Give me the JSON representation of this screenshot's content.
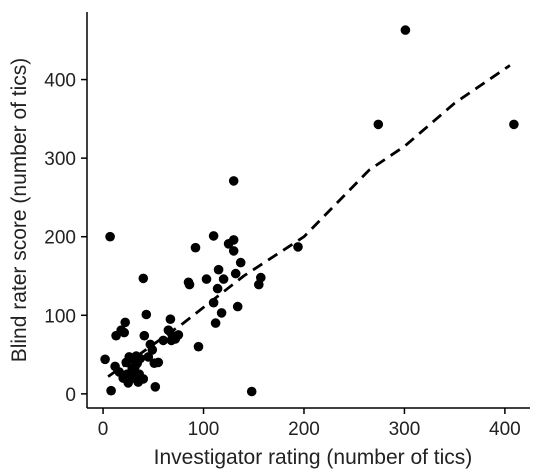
{
  "chart_data": {
    "type": "scatter",
    "xlabel": "Investigator rating (number of tics)",
    "ylabel": "Blind rater score (number of tics)",
    "xlim": [
      -16,
      425
    ],
    "ylim": [
      -18,
      486
    ],
    "xticks": [
      0,
      100,
      200,
      300,
      400
    ],
    "yticks": [
      0,
      100,
      200,
      300,
      400
    ],
    "grid": false,
    "point_color": "#000000",
    "trend_line": {
      "style": "dashed",
      "color": "#000000",
      "points": [
        [
          5,
          22
        ],
        [
          80,
          90
        ],
        [
          140,
          150
        ],
        [
          200,
          200
        ],
        [
          265,
          285
        ],
        [
          300,
          315
        ],
        [
          350,
          370
        ],
        [
          405,
          418
        ]
      ]
    },
    "points": [
      [
        2,
        44
      ],
      [
        8,
        4
      ],
      [
        7,
        200
      ],
      [
        12,
        35
      ],
      [
        13,
        74
      ],
      [
        16,
        28
      ],
      [
        18,
        81
      ],
      [
        20,
        20
      ],
      [
        21,
        78
      ],
      [
        22,
        91
      ],
      [
        23,
        40
      ],
      [
        24,
        25
      ],
      [
        25,
        14
      ],
      [
        26,
        47
      ],
      [
        27,
        22
      ],
      [
        28,
        45
      ],
      [
        29,
        33
      ],
      [
        30,
        20
      ],
      [
        31,
        27
      ],
      [
        32,
        35
      ],
      [
        33,
        48
      ],
      [
        34,
        39
      ],
      [
        35,
        15
      ],
      [
        36,
        25
      ],
      [
        37,
        45
      ],
      [
        40,
        19
      ],
      [
        40,
        147
      ],
      [
        41,
        74
      ],
      [
        43,
        101
      ],
      [
        45,
        47
      ],
      [
        47,
        63
      ],
      [
        49,
        56
      ],
      [
        51,
        39
      ],
      [
        52,
        9
      ],
      [
        55,
        40
      ],
      [
        60,
        68
      ],
      [
        65,
        81
      ],
      [
        67,
        95
      ],
      [
        68,
        68
      ],
      [
        69,
        74
      ],
      [
        72,
        70
      ],
      [
        75,
        75
      ],
      [
        85,
        142
      ],
      [
        86,
        139
      ],
      [
        92,
        186
      ],
      [
        95,
        60
      ],
      [
        103,
        146
      ],
      [
        110,
        116
      ],
      [
        110,
        201
      ],
      [
        112,
        90
      ],
      [
        114,
        134
      ],
      [
        115,
        158
      ],
      [
        118,
        103
      ],
      [
        120,
        146
      ],
      [
        125,
        191
      ],
      [
        130,
        196
      ],
      [
        130,
        271
      ],
      [
        130,
        182
      ],
      [
        132,
        153
      ],
      [
        134,
        111
      ],
      [
        137,
        167
      ],
      [
        148,
        3
      ],
      [
        155,
        139
      ],
      [
        157,
        148
      ],
      [
        194,
        187
      ],
      [
        274,
        343
      ],
      [
        301,
        463
      ],
      [
        409,
        343
      ]
    ]
  }
}
